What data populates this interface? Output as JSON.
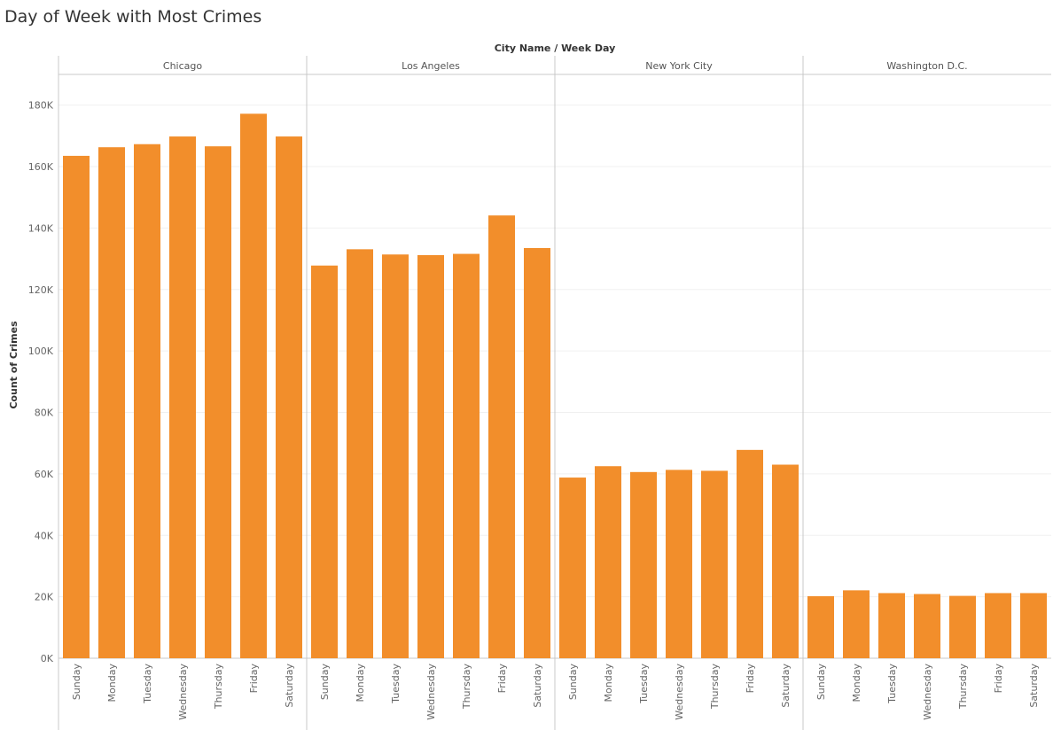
{
  "chart_data": {
    "type": "bar",
    "title": "Day of Week with Most Crimes",
    "header_label": "City Name  /  Week Day",
    "ylabel": "Count of Crimes",
    "ylim": [
      0,
      180000
    ],
    "y_ticks": [
      0,
      20000,
      40000,
      60000,
      80000,
      100000,
      120000,
      140000,
      160000,
      180000
    ],
    "y_tick_labels": [
      "0K",
      "20K",
      "40K",
      "60K",
      "80K",
      "100K",
      "120K",
      "140K",
      "160K",
      "180K"
    ],
    "bar_color": "#f28e2b",
    "grid": true,
    "categories": [
      "Sunday",
      "Monday",
      "Tuesday",
      "Wednesday",
      "Thursday",
      "Friday",
      "Saturday"
    ],
    "panels": [
      {
        "name": "Chicago",
        "values": [
          163500,
          166300,
          167300,
          169800,
          166600,
          177200,
          169800
        ]
      },
      {
        "name": "Los Angeles",
        "values": [
          127800,
          133100,
          131400,
          131200,
          131600,
          144100,
          133500
        ]
      },
      {
        "name": "New York City",
        "values": [
          58800,
          62500,
          60600,
          61300,
          61000,
          67800,
          63000
        ]
      },
      {
        "name": "Washington D.C.",
        "values": [
          20200,
          22100,
          21200,
          20900,
          20300,
          21200,
          21200
        ]
      }
    ]
  }
}
